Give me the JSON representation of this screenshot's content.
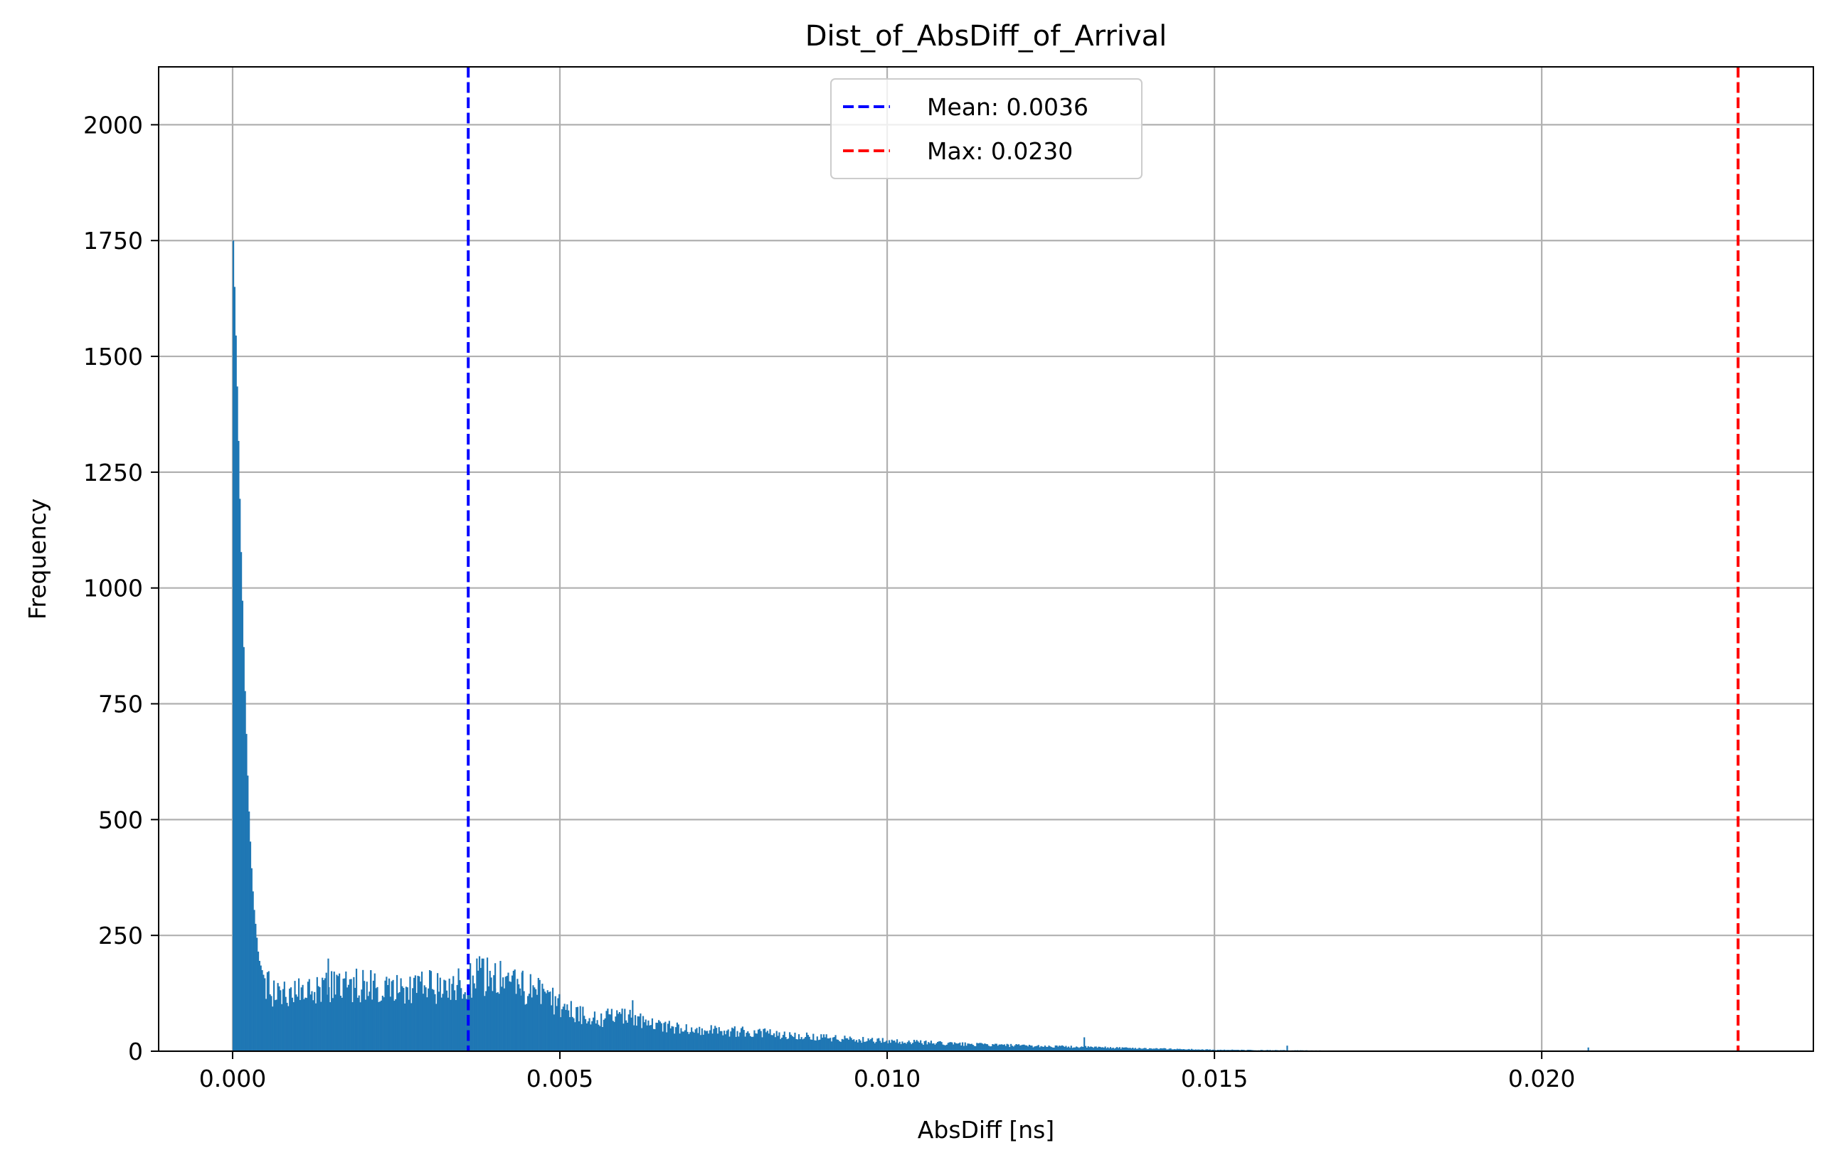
{
  "chart_data": {
    "type": "bar",
    "title": "Dist_of_AbsDiff_of_Arrival",
    "xlabel": "AbsDiff [ns]",
    "ylabel": "Frequency",
    "xlim": [
      -0.00113,
      0.02415
    ],
    "ylim": [
      0,
      2125
    ],
    "x_ticks": [
      0.0,
      0.005,
      0.01,
      0.015,
      0.02
    ],
    "x_tick_labels": [
      "0.000",
      "0.005",
      "0.010",
      "0.015",
      "0.020"
    ],
    "y_ticks": [
      0,
      250,
      500,
      750,
      1000,
      1250,
      1500,
      1750,
      2000
    ],
    "y_tick_labels": [
      "0",
      "250",
      "500",
      "750",
      "1000",
      "1250",
      "1500",
      "1750",
      "2000"
    ],
    "grid": true,
    "bar_color": "#1f77b4",
    "histogram": {
      "bin_start": 0.0,
      "bin_width": 2e-05,
      "profile": [
        [
          0.0,
          1800
        ],
        [
          4e-05,
          1600
        ],
        [
          8e-05,
          1380
        ],
        [
          0.00012,
          1130
        ],
        [
          0.00016,
          920
        ],
        [
          0.0002,
          730
        ],
        [
          0.00024,
          550
        ],
        [
          0.00028,
          420
        ],
        [
          0.00032,
          320
        ],
        [
          0.00036,
          260
        ],
        [
          0.0004,
          200
        ],
        [
          0.00048,
          160
        ],
        [
          0.0006,
          130
        ],
        [
          0.001,
          125
        ],
        [
          0.0015,
          140
        ],
        [
          0.002,
          140
        ],
        [
          0.0025,
          140
        ],
        [
          0.003,
          135
        ],
        [
          0.0035,
          150
        ],
        [
          0.0038,
          165
        ],
        [
          0.0042,
          150
        ],
        [
          0.0046,
          130
        ],
        [
          0.005,
          100
        ],
        [
          0.0055,
          70
        ],
        [
          0.006,
          75
        ],
        [
          0.0065,
          55
        ],
        [
          0.007,
          48
        ],
        [
          0.008,
          40
        ],
        [
          0.009,
          30
        ],
        [
          0.01,
          22
        ],
        [
          0.011,
          16
        ],
        [
          0.012,
          12
        ],
        [
          0.013,
          9
        ],
        [
          0.014,
          6
        ],
        [
          0.015,
          3
        ],
        [
          0.016,
          2
        ],
        [
          0.017,
          1
        ],
        [
          0.018,
          0.5
        ],
        [
          0.0206,
          0.3
        ],
        [
          0.0207,
          0
        ]
      ],
      "spikes": [
        [
          0.00362,
          190
        ],
        [
          0.0038,
          200
        ],
        [
          0.004,
          190
        ],
        [
          0.00145,
          200
        ],
        [
          0.0061,
          110
        ],
        [
          0.0021,
          175
        ],
        [
          0.003,
          175
        ],
        [
          0.00441,
          170
        ],
        [
          0.013,
          30
        ],
        [
          0.0161,
          12
        ],
        [
          0.0207,
          8
        ]
      ]
    },
    "lines": [
      {
        "name": "Mean: 0.0036",
        "x": 0.0036,
        "color": "#0000ff",
        "style": "dashed"
      },
      {
        "name": "Max: 0.0230",
        "x": 0.023,
        "color": "#ff0000",
        "style": "dashed"
      }
    ],
    "legend": {
      "placement": "upper-center",
      "entries": [
        "Mean: 0.0036",
        "Max: 0.0230"
      ]
    }
  }
}
